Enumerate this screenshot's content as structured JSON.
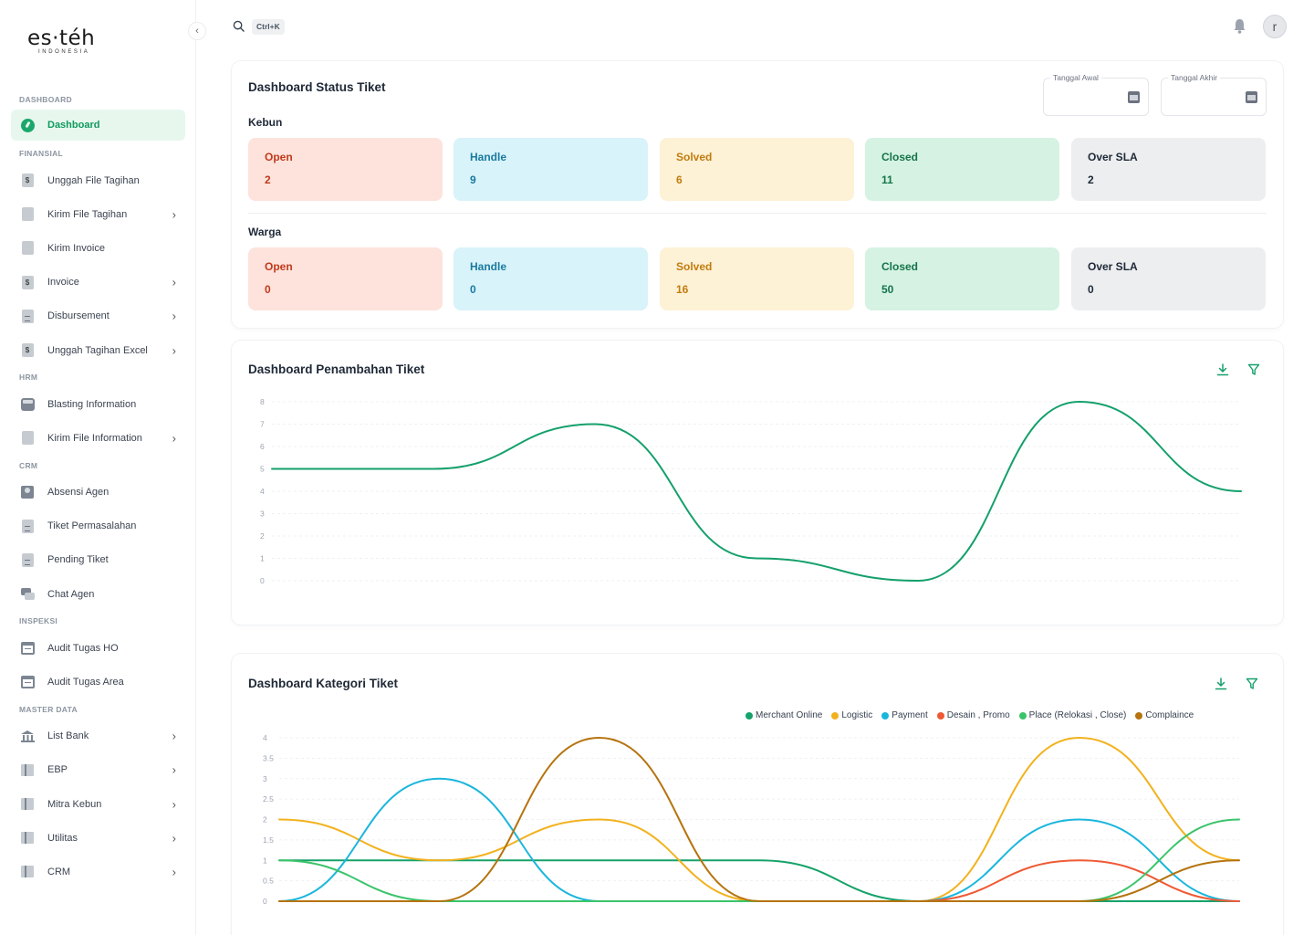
{
  "brand": {
    "logo_main": "es·téh",
    "logo_sub": "INDONESIA"
  },
  "topbar": {
    "shortcut": "Ctrl+K",
    "avatar_initial": "r"
  },
  "sidebar": {
    "sections": [
      {
        "label": "DASHBOARD",
        "items": [
          {
            "label": "Dashboard",
            "icon": "dashboard-icon",
            "active": true
          }
        ]
      },
      {
        "label": "FINANSIAL",
        "items": [
          {
            "label": "Unggah File Tagihan",
            "icon": "dollar-file-icon"
          },
          {
            "label": "Kirim File Tagihan",
            "icon": "file-icon",
            "chevron": true
          },
          {
            "label": "Kirim Invoice",
            "icon": "file-icon"
          },
          {
            "label": "Invoice",
            "icon": "dollar-file-icon",
            "chevron": true
          },
          {
            "label": "Disbursement",
            "icon": "document-icon",
            "chevron": true
          },
          {
            "label": "Unggah Tagihan Excel",
            "icon": "dollar-file-icon",
            "chevron": true
          }
        ]
      },
      {
        "label": "HRM",
        "items": [
          {
            "label": "Blasting Information",
            "icon": "inbox-icon"
          },
          {
            "label": "Kirim File Information",
            "icon": "file-icon",
            "chevron": true
          }
        ]
      },
      {
        "label": "CRM",
        "items": [
          {
            "label": "Absensi Agen",
            "icon": "person-icon"
          },
          {
            "label": "Tiket Permasalahan",
            "icon": "document-icon"
          },
          {
            "label": "Pending Tiket",
            "icon": "document-icon"
          },
          {
            "label": "Chat Agen",
            "icon": "chat-icon"
          }
        ]
      },
      {
        "label": "INSPEKSI",
        "items": [
          {
            "label": "Audit Tugas HO",
            "icon": "calendar-icon"
          },
          {
            "label": "Audit Tugas Area",
            "icon": "calendar-icon"
          }
        ]
      },
      {
        "label": "MASTER DATA",
        "items": [
          {
            "label": "List Bank",
            "icon": "bank-icon",
            "chevron": true
          },
          {
            "label": "EBP",
            "icon": "bars-icon",
            "chevron": true
          },
          {
            "label": "Mitra Kebun",
            "icon": "bars-icon",
            "chevron": true
          },
          {
            "label": "Utilitas",
            "icon": "bars-icon",
            "chevron": true
          },
          {
            "label": "CRM",
            "icon": "bars-icon",
            "chevron": true
          }
        ]
      }
    ]
  },
  "status_card": {
    "title": "Dashboard Status Tiket",
    "date_start_label": "Tanggal Awal",
    "date_end_label": "Tanggal Akhir",
    "groups": [
      {
        "label": "Kebun",
        "stats": [
          {
            "label": "Open",
            "value": "2",
            "kind": "open"
          },
          {
            "label": "Handle",
            "value": "9",
            "kind": "handle"
          },
          {
            "label": "Solved",
            "value": "6",
            "kind": "solved"
          },
          {
            "label": "Closed",
            "value": "11",
            "kind": "closed"
          },
          {
            "label": "Over SLA",
            "value": "2",
            "kind": "sla"
          }
        ]
      },
      {
        "label": "Warga",
        "stats": [
          {
            "label": "Open",
            "value": "0",
            "kind": "open"
          },
          {
            "label": "Handle",
            "value": "0",
            "kind": "handle"
          },
          {
            "label": "Solved",
            "value": "16",
            "kind": "solved"
          },
          {
            "label": "Closed",
            "value": "50",
            "kind": "closed"
          },
          {
            "label": "Over SLA",
            "value": "0",
            "kind": "sla"
          }
        ]
      }
    ]
  },
  "chart_data": [
    {
      "type": "line",
      "title": "Dashboard Penambahan Tiket",
      "ylim": [
        0,
        8
      ],
      "yticks": [
        "0",
        "1",
        "2",
        "3",
        "4",
        "5",
        "6",
        "7",
        "8"
      ],
      "grid": true,
      "series": [
        {
          "color": "#14a06b",
          "values": [
            5,
            5,
            7,
            1,
            0,
            8,
            4
          ]
        }
      ]
    },
    {
      "type": "line",
      "title": "Dashboard Kategori Tiket",
      "ylim": [
        0,
        4
      ],
      "yticks": [
        "0",
        "0.5",
        "1",
        "1.5",
        "2",
        "2.5",
        "3",
        "3.5",
        "4"
      ],
      "grid": true,
      "legend_position": "top-right",
      "series": [
        {
          "name": "Merchant Online",
          "color": "#16a26a",
          "values": [
            1,
            1,
            1,
            1,
            0,
            0,
            0
          ]
        },
        {
          "name": "Logistic",
          "color": "#f2b21f",
          "values": [
            2,
            1,
            2,
            0,
            0,
            4,
            1
          ]
        },
        {
          "name": "Payment",
          "color": "#1ab6dc",
          "values": [
            0,
            3,
            0,
            0,
            0,
            2,
            0
          ]
        },
        {
          "name": "Desain , Promo",
          "color": "#ef5a35",
          "values": [
            0,
            0,
            0,
            0,
            0,
            1,
            0
          ]
        },
        {
          "name": "Place (Relokasi , Close)",
          "color": "#3bc46a",
          "values": [
            1,
            0,
            0,
            0,
            0,
            0,
            2
          ]
        },
        {
          "name": "Complaince",
          "color": "#b5740e",
          "values": [
            0,
            0,
            4,
            0,
            0,
            0,
            1
          ]
        }
      ]
    }
  ]
}
